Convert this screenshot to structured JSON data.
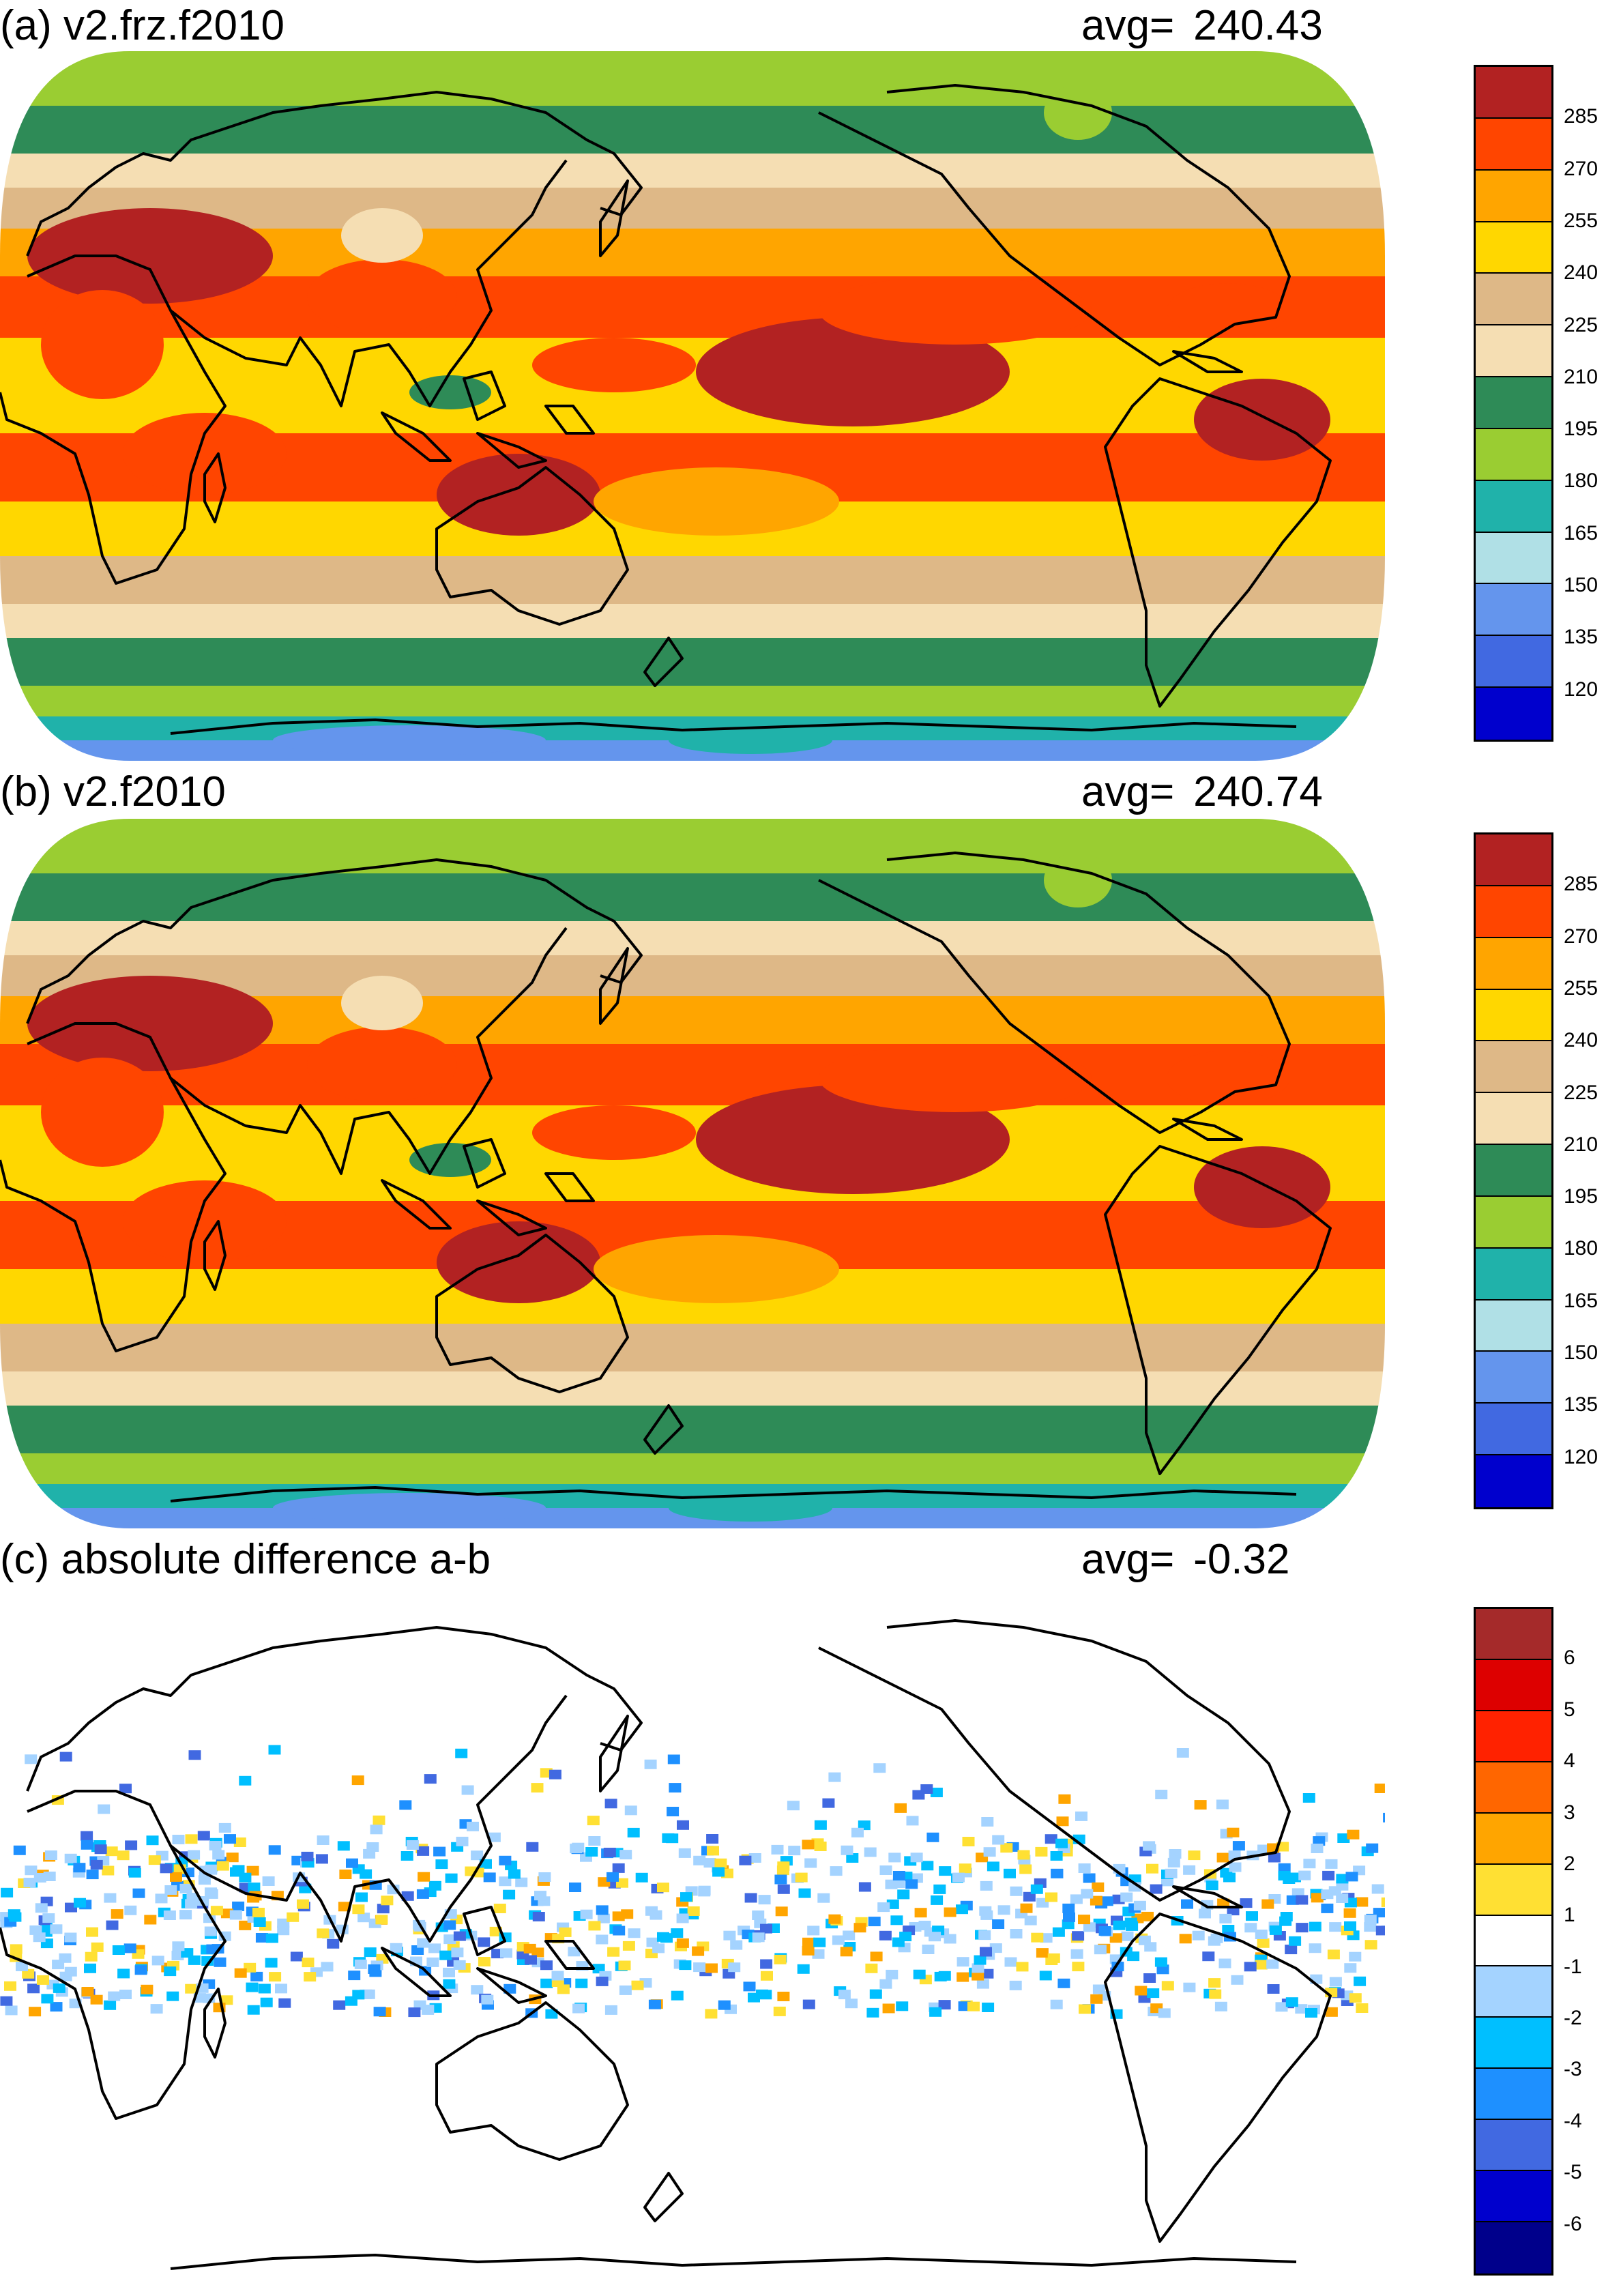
{
  "panels": [
    {
      "title": "(a) v2.frz.f2010",
      "avg_label": "avg=",
      "avg_value": "240.43",
      "colorbar": {
        "ticks": [
          "285",
          "270",
          "255",
          "240",
          "225",
          "210",
          "195",
          "180",
          "165",
          "150",
          "135",
          "120"
        ],
        "colors": [
          "#b22222",
          "#ff4500",
          "#ffa500",
          "#ffd700",
          "#deb887",
          "#f5deb3",
          "#2e8b57",
          "#9acd32",
          "#20b2aa",
          "#b0e0e6",
          "#6495ed",
          "#4169e1",
          "#0000cd"
        ]
      }
    },
    {
      "title": "(b) v2.f2010",
      "avg_label": "avg=",
      "avg_value": "240.74",
      "colorbar": {
        "ticks": [
          "285",
          "270",
          "255",
          "240",
          "225",
          "210",
          "195",
          "180",
          "165",
          "150",
          "135",
          "120"
        ],
        "colors": [
          "#b22222",
          "#ff4500",
          "#ffa500",
          "#ffd700",
          "#deb887",
          "#f5deb3",
          "#2e8b57",
          "#9acd32",
          "#20b2aa",
          "#b0e0e6",
          "#6495ed",
          "#4169e1",
          "#0000cd"
        ]
      }
    },
    {
      "title": "(c) absolute difference a-b",
      "avg_label": "avg=",
      "avg_value": "-0.32",
      "colorbar": {
        "ticks": [
          "6",
          "5",
          "4",
          "3",
          "2",
          "1",
          "-1",
          "-2",
          "-3",
          "-4",
          "-5",
          "-6"
        ],
        "colors": [
          "#a52a2a",
          "#dd0000",
          "#ff2200",
          "#ff6600",
          "#ffa500",
          "#ffe033",
          "#ffffff",
          "#a4d3ff",
          "#00bfff",
          "#1e90ff",
          "#4169e1",
          "#0000cd",
          "#00008b"
        ]
      }
    }
  ]
}
